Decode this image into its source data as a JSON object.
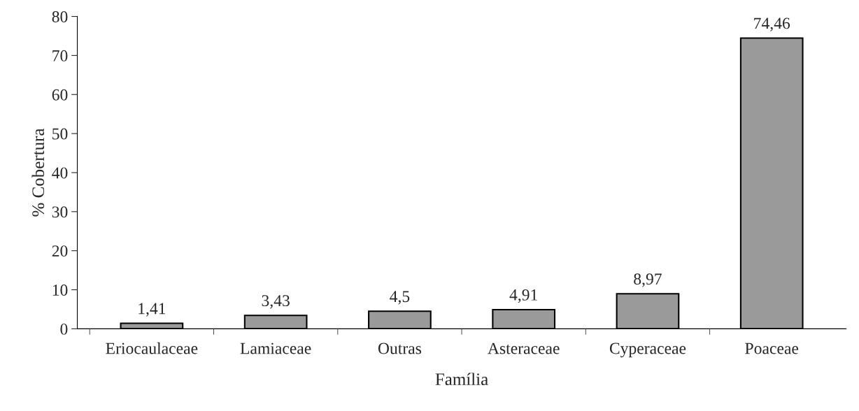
{
  "chart_data": {
    "type": "bar",
    "xlabel": "Família",
    "ylabel": "% Cobertura",
    "categories": [
      "Eriocaulaceae",
      "Lamiaceae",
      "Outras",
      "Asteraceae",
      "Cyperaceae",
      "Poaceae"
    ],
    "values": [
      1.41,
      3.43,
      4.5,
      4.91,
      8.97,
      74.46
    ],
    "value_labels": [
      "1,41",
      "3,43",
      "4,5",
      "4,91",
      "8,97",
      "74,46"
    ],
    "color": "#9a9a9a",
    "ylim": [
      0,
      80
    ],
    "yticks": [
      0,
      10,
      20,
      30,
      40,
      50,
      60,
      70,
      80
    ],
    "grid": false,
    "legend": false
  }
}
